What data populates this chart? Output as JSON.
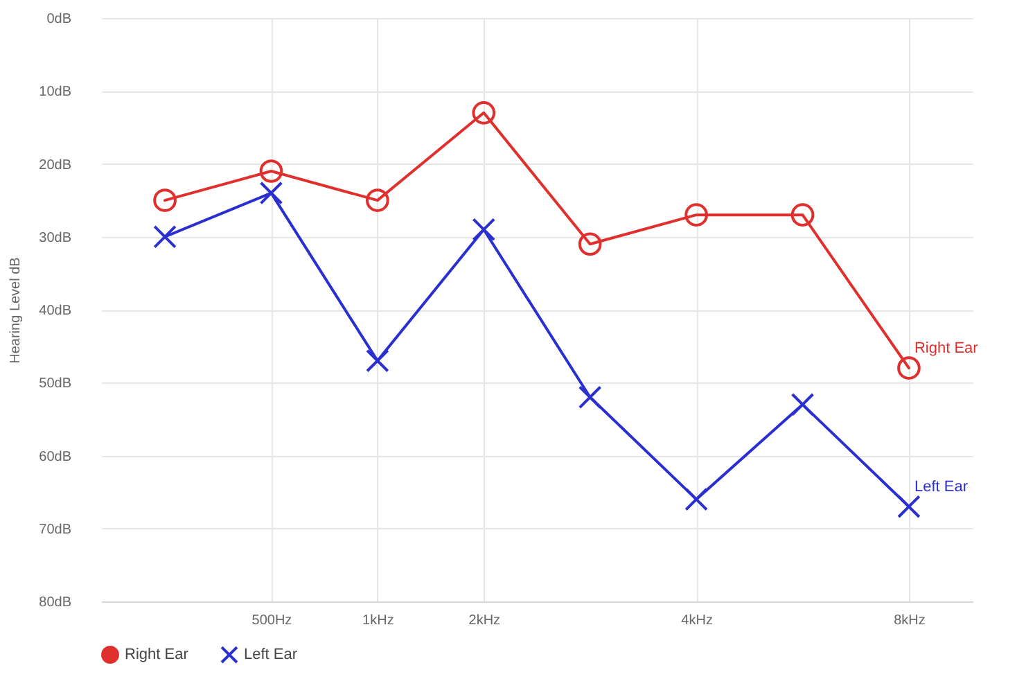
{
  "chart_data": {
    "type": "line",
    "ylabel": "Hearing Level dB",
    "categories": [
      null,
      "500Hz",
      "1kHz",
      "2kHz",
      null,
      "4kHz",
      null,
      "8kHz"
    ],
    "ylim": [
      80,
      0
    ],
    "yticks": [
      {
        "value": 0,
        "label": "0dB"
      },
      {
        "value": 10,
        "label": "10dB"
      },
      {
        "value": 20,
        "label": "20dB"
      },
      {
        "value": 30,
        "label": "30dB"
      },
      {
        "value": 40,
        "label": "40dB"
      },
      {
        "value": 50,
        "label": "50dB"
      },
      {
        "value": 60,
        "label": "60dB"
      },
      {
        "value": 70,
        "label": "70dB"
      },
      {
        "value": 80,
        "label": "80dB"
      }
    ],
    "series": [
      {
        "name": "Right Ear",
        "color": "#e0302e",
        "marker": "circle",
        "values": [
          25,
          21,
          25,
          13,
          31,
          27,
          27,
          48
        ]
      },
      {
        "name": "Left Ear",
        "color": "#2a2fd0",
        "marker": "cross",
        "values": [
          30,
          24,
          47,
          29,
          52,
          66,
          53,
          67
        ]
      }
    ],
    "grid": true,
    "legend": "bottom"
  }
}
